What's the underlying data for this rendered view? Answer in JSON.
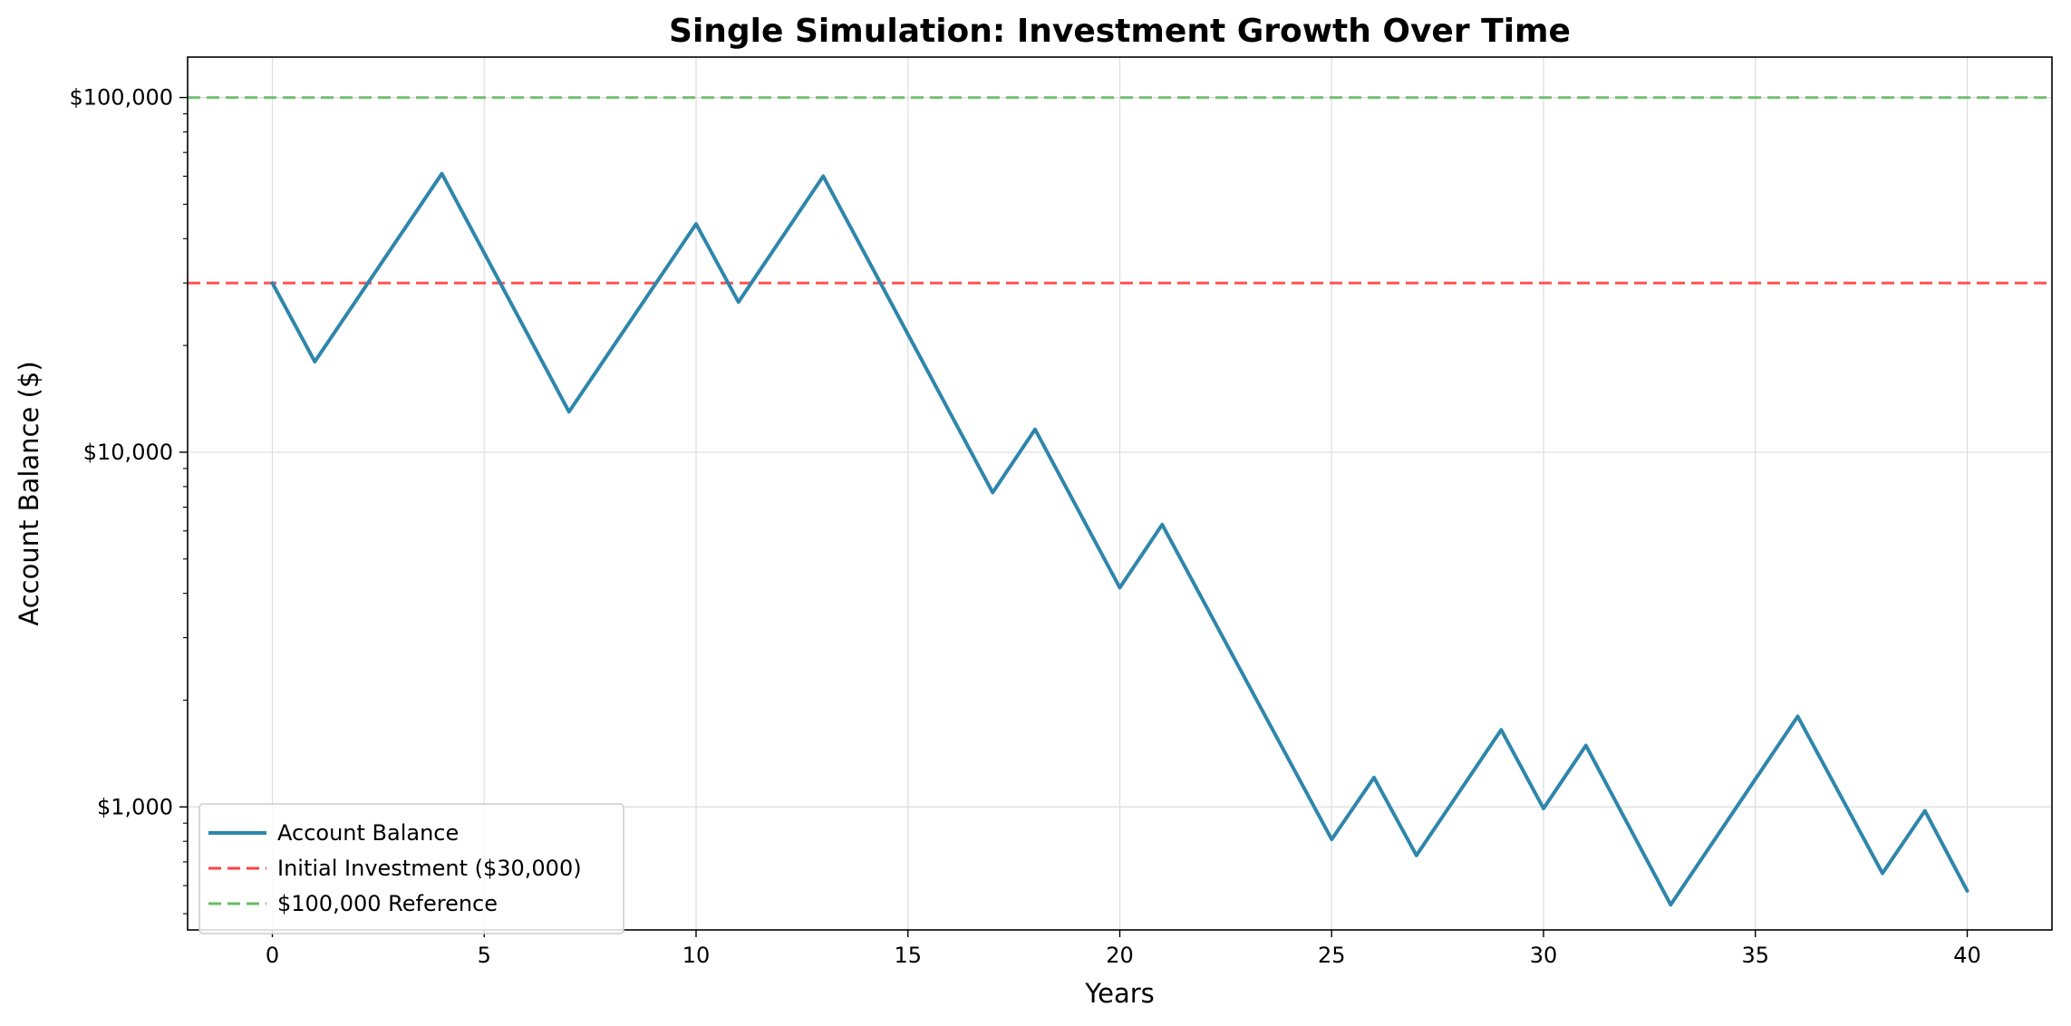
{
  "chart_data": {
    "type": "line",
    "title": "Single Simulation: Investment Growth Over Time",
    "xlabel": "Years",
    "ylabel": "Account Balance ($)",
    "xlim": [
      -2,
      42
    ],
    "ylim": [
      450,
      130000
    ],
    "yscale": "log",
    "grid": true,
    "legend_position": "lower-left",
    "x_ticks": [
      0,
      5,
      10,
      15,
      20,
      25,
      30,
      35,
      40
    ],
    "x_tick_labels": [
      "0",
      "5",
      "10",
      "15",
      "20",
      "25",
      "30",
      "35",
      "40"
    ],
    "y_ticks": [
      1000,
      10000,
      100000
    ],
    "y_tick_labels": [
      "$1,000",
      "$10,000",
      "$100,000"
    ],
    "series": [
      {
        "name": "Account Balance",
        "color": "#2e86ab",
        "style": "solid",
        "x": [
          0,
          1,
          4,
          7,
          10,
          11,
          13,
          17,
          18,
          20,
          21,
          25,
          26,
          27,
          29,
          30,
          31,
          33,
          36,
          38,
          39,
          40
        ],
        "y": [
          30000,
          18000,
          61000,
          13000,
          44000,
          26500,
          60000,
          7700,
          11600,
          4150,
          6250,
          810,
          1210,
          730,
          1650,
          990,
          1490,
          530,
          1800,
          650,
          975,
          580
        ]
      }
    ],
    "reference_lines": [
      {
        "name": "Initial Investment ($30,000)",
        "y": 30000,
        "color": "#ff4040",
        "style": "dashed"
      },
      {
        "name": "$100,000 Reference",
        "y": 100000,
        "color": "#66bb66",
        "style": "dashed"
      }
    ]
  }
}
